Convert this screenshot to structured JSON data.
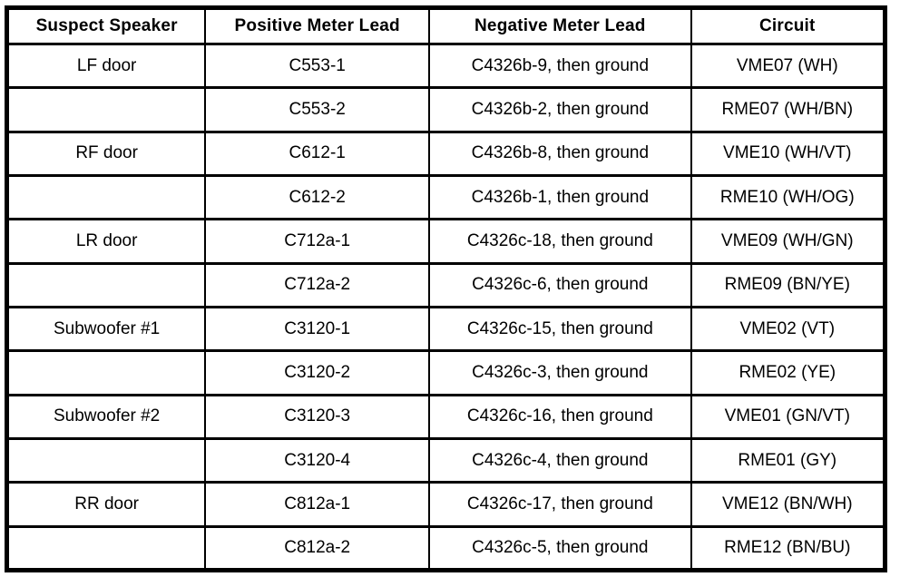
{
  "table": {
    "name": "speaker-meter-lead-test-table",
    "colors": {
      "border": "#000000",
      "background": "#ffffff",
      "text": "#000000"
    },
    "headers": [
      "Suspect Speaker",
      "Positive Meter Lead",
      "Negative Meter Lead",
      "Circuit"
    ],
    "rows": [
      [
        "LF door",
        "C553-1",
        "C4326b-9, then ground",
        "VME07 (WH)"
      ],
      [
        "",
        "C553-2",
        "C4326b-2, then ground",
        "RME07 (WH/BN)"
      ],
      [
        "RF door",
        "C612-1",
        "C4326b-8, then ground",
        "VME10 (WH/VT)"
      ],
      [
        "",
        "C612-2",
        "C4326b-1, then ground",
        "RME10 (WH/OG)"
      ],
      [
        "LR door",
        "C712a-1",
        "C4326c-18, then ground",
        "VME09 (WH/GN)"
      ],
      [
        "",
        "C712a-2",
        "C4326c-6, then ground",
        "RME09 (BN/YE)"
      ],
      [
        "Subwoofer #1",
        "C3120-1",
        "C4326c-15, then ground",
        "VME02 (VT)"
      ],
      [
        "",
        "C3120-2",
        "C4326c-3, then ground",
        "RME02 (YE)"
      ],
      [
        "Subwoofer #2",
        "C3120-3",
        "C4326c-16, then ground",
        "VME01 (GN/VT)"
      ],
      [
        "",
        "C3120-4",
        "C4326c-4, then ground",
        "RME01 (GY)"
      ],
      [
        "RR door",
        "C812a-1",
        "C4326c-17, then ground",
        "VME12 (BN/WH)"
      ],
      [
        "",
        "C812a-2",
        "C4326c-5, then ground",
        "RME12 (BN/BU)"
      ]
    ]
  }
}
